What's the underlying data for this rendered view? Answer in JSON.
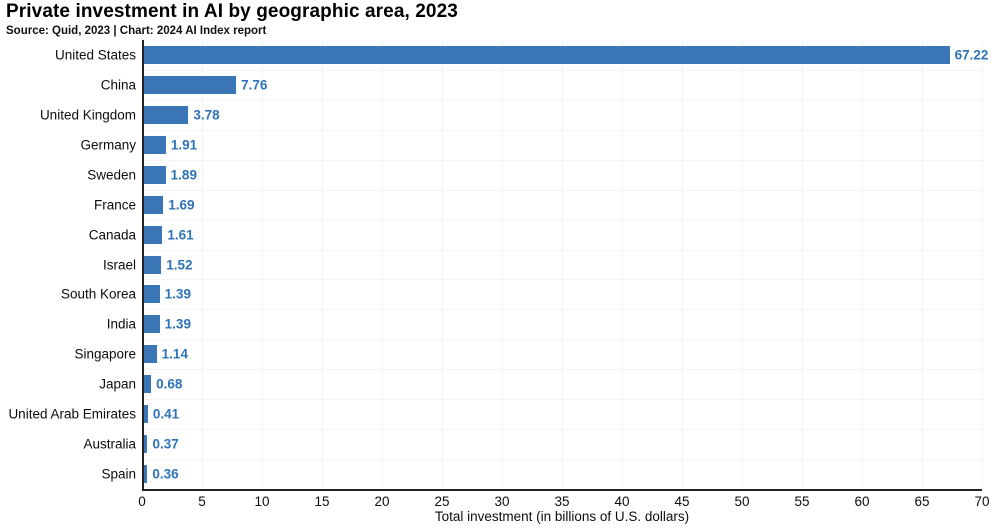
{
  "header": {
    "title": "Private investment in AI by geographic area, 2023",
    "source": "Source: Quid, 2023 | Chart: 2024 AI Index report"
  },
  "chart_data": {
    "type": "bar",
    "orientation": "horizontal",
    "title": "Private investment in AI by geographic area, 2023",
    "subtitle": "Source: Quid, 2023 | Chart: 2024 AI Index report",
    "categories": [
      "United States",
      "China",
      "United Kingdom",
      "Germany",
      "Sweden",
      "France",
      "Canada",
      "Israel",
      "South Korea",
      "India",
      "Singapore",
      "Japan",
      "United Arab Emirates",
      "Australia",
      "Spain"
    ],
    "values": [
      67.22,
      7.76,
      3.78,
      1.91,
      1.89,
      1.69,
      1.61,
      1.52,
      1.39,
      1.39,
      1.14,
      0.68,
      0.41,
      0.37,
      0.36
    ],
    "value_labels": [
      "67.22",
      "7.76",
      "3.78",
      "1.91",
      "1.89",
      "1.69",
      "1.61",
      "1.52",
      "1.39",
      "1.39",
      "1.14",
      "0.68",
      "0.41",
      "0.37",
      "0.36"
    ],
    "xlabel": "Total investment (in billions of U.S. dollars)",
    "xlim": [
      0,
      70
    ],
    "xticks": [
      0,
      5,
      10,
      15,
      20,
      25,
      30,
      35,
      40,
      45,
      50,
      55,
      60,
      65,
      70
    ],
    "grid": true,
    "legend": false,
    "colors": {
      "bar": "#3a76b5",
      "value_label": "#2f74b8",
      "axis": "#222222",
      "gridline": "#f4f4f4",
      "text": "#0d0d0d"
    }
  }
}
